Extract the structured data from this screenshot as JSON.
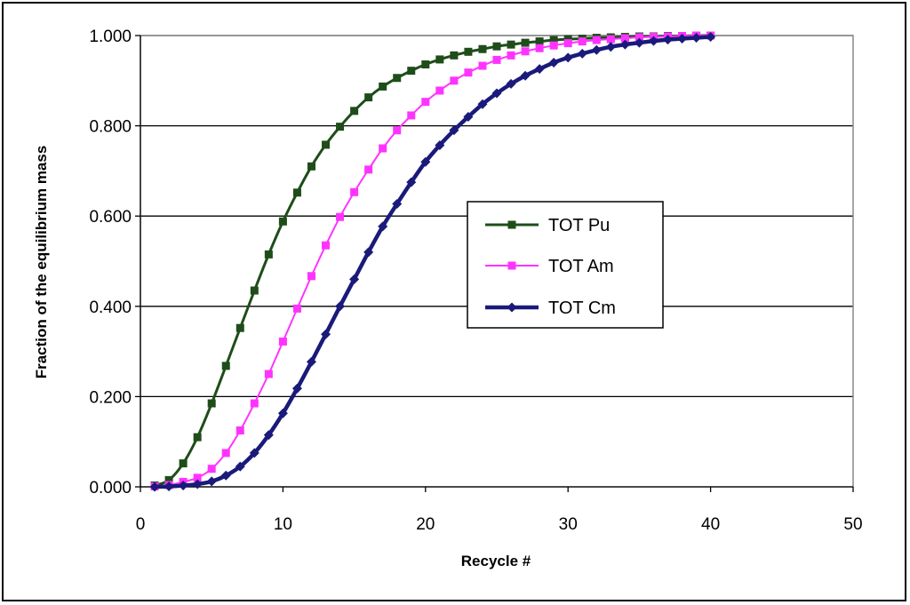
{
  "chart_data": {
    "type": "line",
    "title": "",
    "xlabel": "Recycle #",
    "ylabel": "Fraction of the equilibrium mass",
    "xlim": [
      0,
      50
    ],
    "ylim": [
      0,
      1
    ],
    "xticks": [
      0,
      10,
      20,
      30,
      40,
      50
    ],
    "xtick_labels": [
      "0",
      "10",
      "20",
      "30",
      "40",
      "50"
    ],
    "yticks": [
      0,
      0.2,
      0.4,
      0.6,
      0.8,
      1.0
    ],
    "ytick_labels": [
      "0.000",
      "0.200",
      "0.400",
      "0.600",
      "0.800",
      "1.000"
    ],
    "grid": "horizontal",
    "legend_position": "center-right",
    "x": [
      1,
      2,
      3,
      4,
      5,
      6,
      7,
      8,
      9,
      10,
      11,
      12,
      13,
      14,
      15,
      16,
      17,
      18,
      19,
      20,
      21,
      22,
      23,
      24,
      25,
      26,
      27,
      28,
      29,
      30,
      31,
      32,
      33,
      34,
      35,
      36,
      37,
      38,
      39,
      40
    ],
    "series": [
      {
        "name": "TOT Pu",
        "color": "#1e4d1a",
        "marker": "square",
        "values": [
          0.003,
          0.015,
          0.052,
          0.11,
          0.185,
          0.268,
          0.352,
          0.435,
          0.515,
          0.588,
          0.652,
          0.71,
          0.758,
          0.798,
          0.833,
          0.863,
          0.887,
          0.906,
          0.922,
          0.936,
          0.947,
          0.956,
          0.964,
          0.97,
          0.976,
          0.98,
          0.984,
          0.987,
          0.99,
          0.992,
          0.993,
          0.995,
          0.996,
          0.997,
          0.998,
          0.998,
          0.999,
          0.999,
          1.0,
          1.0
        ]
      },
      {
        "name": "TOT Am",
        "color": "#ff33ff",
        "marker": "square",
        "values": [
          0.001,
          0.004,
          0.011,
          0.02,
          0.04,
          0.075,
          0.125,
          0.185,
          0.25,
          0.322,
          0.395,
          0.467,
          0.535,
          0.598,
          0.653,
          0.703,
          0.75,
          0.79,
          0.823,
          0.853,
          0.878,
          0.9,
          0.918,
          0.933,
          0.946,
          0.956,
          0.965,
          0.972,
          0.978,
          0.983,
          0.987,
          0.99,
          0.992,
          0.994,
          0.996,
          0.997,
          0.998,
          0.999,
          1.0,
          1.0
        ]
      },
      {
        "name": "TOT Cm",
        "color": "#1a1a7a",
        "marker": "diamond",
        "values": [
          0.0,
          0.001,
          0.003,
          0.006,
          0.012,
          0.025,
          0.045,
          0.075,
          0.115,
          0.163,
          0.218,
          0.277,
          0.338,
          0.4,
          0.46,
          0.52,
          0.577,
          0.627,
          0.675,
          0.72,
          0.757,
          0.79,
          0.82,
          0.848,
          0.872,
          0.893,
          0.911,
          0.926,
          0.94,
          0.951,
          0.96,
          0.968,
          0.975,
          0.98,
          0.984,
          0.988,
          0.991,
          0.993,
          0.995,
          0.997
        ]
      }
    ]
  }
}
